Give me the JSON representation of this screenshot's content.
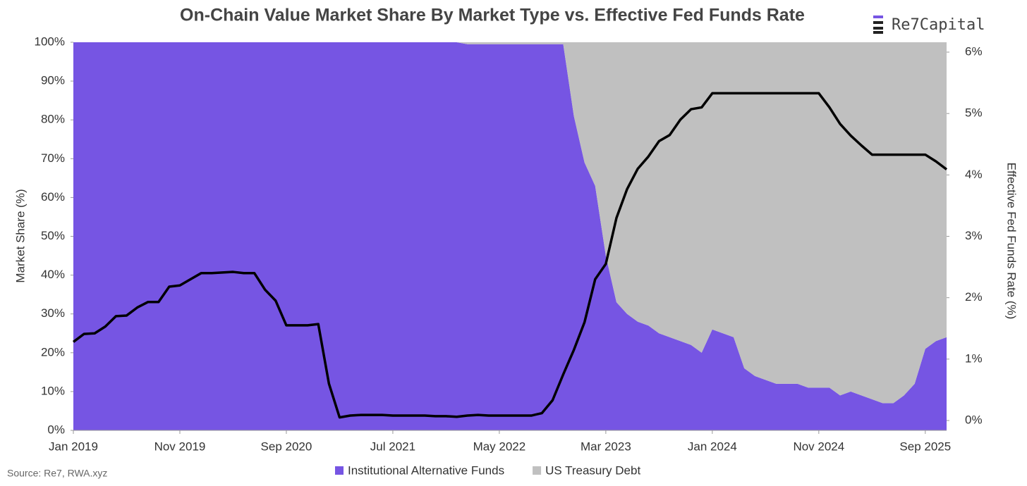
{
  "chart_data": {
    "type": "stacked-area-line",
    "title": "On-Chain Value Market Share By Market Type vs. Effective Fed Funds Rate",
    "logo": "Re7Capital",
    "source": "Source: Re7, RWA.xyz",
    "y_label": "Market Share (%)",
    "y2_label": "Effective Fed Funds Rate (%)",
    "categories": [
      "Jan 2019",
      null,
      null,
      null,
      null,
      null,
      null,
      null,
      null,
      null,
      "Nov 2019",
      null,
      null,
      null,
      null,
      null,
      null,
      null,
      null,
      null,
      "Sep 2020",
      null,
      null,
      null,
      null,
      null,
      null,
      null,
      null,
      null,
      "Jul 2021",
      null,
      null,
      null,
      null,
      null,
      null,
      null,
      null,
      null,
      "May 2022",
      null,
      null,
      null,
      null,
      null,
      null,
      null,
      null,
      null,
      "Mar 2023",
      null,
      null,
      null,
      null,
      null,
      null,
      null,
      null,
      null,
      "Jan 2024",
      null,
      null,
      null,
      null,
      null,
      null,
      null,
      null,
      null,
      "Nov 2024",
      null,
      null,
      null,
      null,
      null,
      null,
      null,
      null,
      null,
      "Sep 2025",
      null,
      null
    ],
    "series": [
      {
        "name": "Institutional Alternative Funds",
        "color": "#7655e3",
        "values": [
          100,
          100,
          100,
          100,
          100,
          100,
          100,
          100,
          100,
          100,
          100,
          100,
          100,
          100,
          100,
          100,
          100,
          100,
          100,
          100,
          100,
          100,
          100,
          100,
          100,
          100,
          100,
          100,
          100,
          100,
          100,
          100,
          100,
          100,
          100,
          100,
          100,
          99.5,
          99.5,
          99.5,
          99.5,
          99.5,
          99.5,
          99.5,
          99.5,
          99.5,
          99.5,
          81,
          69,
          63,
          45,
          33,
          30,
          28,
          27,
          25,
          24,
          23,
          22,
          20,
          26,
          25,
          24,
          16,
          14,
          13,
          12,
          12,
          12,
          11,
          11,
          11,
          9,
          10,
          9,
          8,
          7,
          7,
          9,
          12,
          21,
          23,
          24
        ]
      },
      {
        "name": "US Treasury Debt",
        "color": "#c0c0c0",
        "values": [
          0,
          0,
          0,
          0,
          0,
          0,
          0,
          0,
          0,
          0,
          0,
          0,
          0,
          0,
          0,
          0,
          0,
          0,
          0,
          0,
          0,
          0,
          0,
          0,
          0,
          0,
          0,
          0,
          0,
          0,
          0,
          0,
          0,
          0,
          0,
          0,
          0,
          0.5,
          0.5,
          0.5,
          0.5,
          0.5,
          0.5,
          0.5,
          0.5,
          0.5,
          0.5,
          19,
          31,
          37,
          55,
          67,
          70,
          72,
          73,
          75,
          76,
          77,
          78,
          80,
          74,
          75,
          76,
          84,
          86,
          87,
          88,
          88,
          88,
          89,
          89,
          89,
          91,
          90,
          91,
          92,
          93,
          93,
          91,
          88,
          79,
          77,
          76
        ]
      },
      {
        "color": "#000000",
        "axis": "y2",
        "values": [
          1.28,
          1.41,
          1.42,
          1.53,
          1.7,
          1.71,
          1.84,
          1.93,
          1.93,
          2.18,
          2.2,
          2.3,
          2.4,
          2.4,
          2.41,
          2.42,
          2.4,
          2.4,
          2.13,
          1.95,
          1.55,
          1.55,
          1.55,
          1.57,
          0.6,
          0.05,
          0.08,
          0.09,
          0.09,
          0.09,
          0.08,
          0.08,
          0.08,
          0.08,
          0.07,
          0.07,
          0.06,
          0.08,
          0.09,
          0.08,
          0.08,
          0.08,
          0.08,
          0.08,
          0.12,
          0.33,
          0.75,
          1.15,
          1.6,
          2.3,
          2.55,
          3.3,
          3.77,
          4.1,
          4.3,
          4.55,
          4.65,
          4.9,
          5.07,
          5.1,
          5.33,
          5.33,
          5.33,
          5.33,
          5.33,
          5.33,
          5.33,
          5.33,
          5.33,
          5.33,
          5.33,
          5.1,
          4.83,
          4.64,
          4.48,
          4.33,
          4.33,
          4.33,
          4.33,
          4.33,
          4.33,
          4.22,
          4.09
        ]
      }
    ],
    "ylim": [
      0,
      100
    ],
    "yticks": [
      {
        "value": 0,
        "label": "0%"
      },
      {
        "value": 10,
        "label": "10%"
      },
      {
        "value": 20,
        "label": "20%"
      },
      {
        "value": 30,
        "label": "30%"
      },
      {
        "value": 40,
        "label": "40%"
      },
      {
        "value": 50,
        "label": "50%"
      },
      {
        "value": 60,
        "label": "60%"
      },
      {
        "value": 70,
        "label": "70%"
      },
      {
        "value": 80,
        "label": "80%"
      },
      {
        "value": 90,
        "label": "90%"
      },
      {
        "value": 100,
        "label": "100%"
      }
    ],
    "y2lim": [
      0,
      6
    ],
    "y2ticks": [
      {
        "value": 0,
        "label": "0%"
      },
      {
        "value": 1,
        "label": "1%"
      },
      {
        "value": 2,
        "label": "2%"
      },
      {
        "value": 3,
        "label": "3%"
      },
      {
        "value": 4,
        "label": "4%"
      },
      {
        "value": 5,
        "label": "5%"
      },
      {
        "value": 6,
        "label": "6%"
      }
    ],
    "grid": false
  }
}
